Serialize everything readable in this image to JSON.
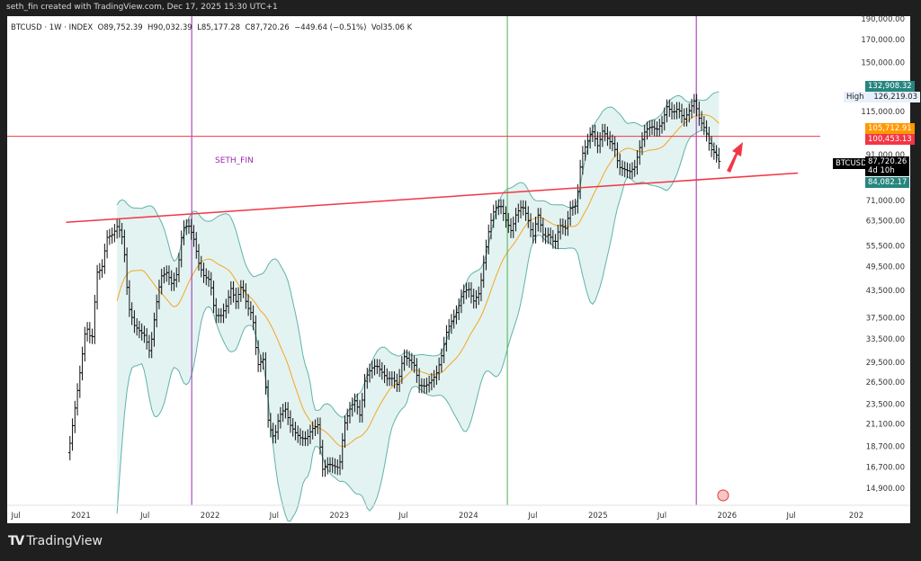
{
  "header": {
    "attribution": "seth_fin created with TradingView.com, Dec 17, 2025 15:30 UTC+1"
  },
  "legend": {
    "symbol": "BTCUSD · 1W · INDEX",
    "open": "O89,752.39",
    "high": "H90,032.39",
    "low": "L85,177.28",
    "close": "C87,720.26",
    "change": "−449.64 (−0.51%)",
    "volume": "Vol35.06 K"
  },
  "annotation": {
    "text": "SETH_FIN",
    "color": "#9c27b0"
  },
  "price_axis": {
    "scale": "log",
    "ticks": [
      "190,000.00",
      "170,000.00",
      "150,000.00",
      "115,000.00",
      "91,000.00",
      "71,000.00",
      "63,500.00",
      "55,500.00",
      "49,500.00",
      "43,500.00",
      "37,500.00",
      "33,500.00",
      "29,500.00",
      "26,500.00",
      "23,500.00",
      "21,100.00",
      "18,700.00",
      "16,700.00",
      "14,900.00"
    ],
    "labels": {
      "upper_band": {
        "text": "132,908.32",
        "color": "#26867f"
      },
      "high_label": "High",
      "high_value": "126,219.03",
      "ma": {
        "text": "105,712.91",
        "color": "#ff9800"
      },
      "hline": {
        "text": "100,453.13",
        "color": "#f23645"
      },
      "symbol": "BTCUSD",
      "last": "87,720.26",
      "countdown": "4d 10h",
      "lower_band": {
        "text": "84,082.17",
        "color": "#26867f"
      }
    }
  },
  "time_axis": {
    "ticks": [
      {
        "label": "Jul",
        "date": "2020-07-01"
      },
      {
        "label": "2021",
        "date": "2021-01-01"
      },
      {
        "label": "Jul",
        "date": "2021-07-01"
      },
      {
        "label": "2022",
        "date": "2022-01-01"
      },
      {
        "label": "Jul",
        "date": "2022-07-01"
      },
      {
        "label": "2023",
        "date": "2023-01-01"
      },
      {
        "label": "Jul",
        "date": "2023-07-01"
      },
      {
        "label": "2024",
        "date": "2024-01-01"
      },
      {
        "label": "Jul",
        "date": "2024-07-01"
      },
      {
        "label": "2025",
        "date": "2025-01-01"
      },
      {
        "label": "Jul",
        "date": "2025-07-01"
      },
      {
        "label": "2026",
        "date": "2026-01-01"
      },
      {
        "label": "Jul",
        "date": "2026-07-01"
      },
      {
        "label": "202",
        "date": "2027-01-01"
      }
    ]
  },
  "drawings": {
    "horizontal_line": {
      "price": 100453.13,
      "color": "#f23645"
    },
    "trend_line": {
      "from": [
        "2020-11-20",
        63000
      ],
      "to": [
        "2026-07-20",
        82300
      ],
      "color": "#f23645"
    },
    "vertical_lines": [
      {
        "date": "2021-11-10",
        "color": "#9c27b0"
      },
      {
        "date": "2024-04-20",
        "color": "#4caf50"
      },
      {
        "date": "2025-10-06",
        "color": "#9c27b0"
      }
    ],
    "arrow": {
      "color": "#f23645",
      "direction": "up-right"
    }
  },
  "indicators": {
    "bollinger": {
      "fill": "#e3f3f2",
      "stroke": "#5fb3aa"
    },
    "ma_color": "#f5a623"
  },
  "chart_data": {
    "type": "ohlc",
    "interval": "1W",
    "approx_close_path": [
      [
        "2020-12-01",
        19000
      ],
      [
        "2020-12-15",
        23000
      ],
      [
        "2021-01-01",
        29000
      ],
      [
        "2021-01-15",
        36000
      ],
      [
        "2021-02-01",
        33000
      ],
      [
        "2021-02-15",
        48000
      ],
      [
        "2021-03-01",
        49000
      ],
      [
        "2021-03-15",
        58000
      ],
      [
        "2021-04-01",
        59000
      ],
      [
        "2021-04-15",
        62000
      ],
      [
        "2021-05-01",
        57000
      ],
      [
        "2021-05-15",
        40000
      ],
      [
        "2021-06-01",
        36000
      ],
      [
        "2021-06-15",
        35000
      ],
      [
        "2021-07-01",
        34000
      ],
      [
        "2021-07-15",
        31000
      ],
      [
        "2021-08-01",
        40000
      ],
      [
        "2021-08-15",
        47000
      ],
      [
        "2021-09-01",
        48000
      ],
      [
        "2021-09-15",
        45000
      ],
      [
        "2021-10-01",
        48000
      ],
      [
        "2021-10-15",
        61000
      ],
      [
        "2021-11-01",
        62000
      ],
      [
        "2021-11-15",
        58000
      ],
      [
        "2021-12-01",
        50000
      ],
      [
        "2021-12-15",
        47000
      ],
      [
        "2022-01-01",
        46000
      ],
      [
        "2022-01-15",
        38000
      ],
      [
        "2022-02-01",
        38000
      ],
      [
        "2022-02-15",
        40000
      ],
      [
        "2022-03-01",
        44000
      ],
      [
        "2022-03-15",
        41000
      ],
      [
        "2022-04-01",
        45000
      ],
      [
        "2022-04-15",
        40000
      ],
      [
        "2022-05-01",
        38000
      ],
      [
        "2022-05-15",
        29000
      ],
      [
        "2022-06-01",
        30000
      ],
      [
        "2022-06-15",
        21000
      ],
      [
        "2022-07-01",
        19500
      ],
      [
        "2022-07-15",
        22000
      ],
      [
        "2022-08-01",
        23000
      ],
      [
        "2022-08-15",
        21000
      ],
      [
        "2022-09-01",
        20000
      ],
      [
        "2022-09-15",
        19500
      ],
      [
        "2022-10-01",
        19500
      ],
      [
        "2022-10-15",
        20500
      ],
      [
        "2022-11-01",
        21000
      ],
      [
        "2022-11-15",
        16500
      ],
      [
        "2022-12-01",
        17000
      ],
      [
        "2022-12-15",
        16800
      ],
      [
        "2023-01-01",
        16600
      ],
      [
        "2023-01-15",
        21000
      ],
      [
        "2023-02-01",
        23000
      ],
      [
        "2023-02-15",
        24000
      ],
      [
        "2023-03-01",
        22000
      ],
      [
        "2023-03-15",
        27000
      ],
      [
        "2023-04-01",
        28500
      ],
      [
        "2023-04-15",
        29000
      ],
      [
        "2023-05-01",
        28000
      ],
      [
        "2023-05-15",
        27000
      ],
      [
        "2023-06-01",
        27000
      ],
      [
        "2023-06-15",
        26000
      ],
      [
        "2023-07-01",
        30500
      ],
      [
        "2023-07-15",
        30000
      ],
      [
        "2023-08-01",
        29000
      ],
      [
        "2023-08-15",
        26000
      ],
      [
        "2023-09-01",
        25900
      ],
      [
        "2023-09-15",
        26500
      ],
      [
        "2023-10-01",
        27500
      ],
      [
        "2023-10-15",
        30000
      ],
      [
        "2023-11-01",
        35000
      ],
      [
        "2023-11-15",
        37000
      ],
      [
        "2023-12-01",
        39000
      ],
      [
        "2023-12-15",
        43000
      ],
      [
        "2024-01-01",
        44000
      ],
      [
        "2024-01-15",
        41000
      ],
      [
        "2024-02-01",
        43000
      ],
      [
        "2024-02-15",
        52000
      ],
      [
        "2024-03-01",
        62000
      ],
      [
        "2024-03-15",
        68000
      ],
      [
        "2024-04-01",
        69000
      ],
      [
        "2024-04-15",
        64000
      ],
      [
        "2024-05-01",
        60000
      ],
      [
        "2024-05-15",
        66000
      ],
      [
        "2024-06-01",
        69000
      ],
      [
        "2024-06-15",
        65000
      ],
      [
        "2024-07-01",
        58000
      ],
      [
        "2024-07-15",
        66000
      ],
      [
        "2024-08-01",
        58000
      ],
      [
        "2024-08-15",
        59000
      ],
      [
        "2024-09-01",
        56000
      ],
      [
        "2024-09-15",
        62000
      ],
      [
        "2024-10-01",
        61000
      ],
      [
        "2024-10-15",
        68000
      ],
      [
        "2024-11-01",
        69000
      ],
      [
        "2024-11-15",
        90000
      ],
      [
        "2024-12-01",
        97000
      ],
      [
        "2024-12-15",
        104000
      ],
      [
        "2025-01-01",
        95000
      ],
      [
        "2025-01-15",
        104000
      ],
      [
        "2025-02-01",
        98000
      ],
      [
        "2025-02-15",
        96000
      ],
      [
        "2025-03-01",
        85000
      ],
      [
        "2025-03-15",
        84000
      ],
      [
        "2025-04-01",
        83000
      ],
      [
        "2025-04-15",
        85000
      ],
      [
        "2025-05-01",
        96000
      ],
      [
        "2025-05-15",
        104000
      ],
      [
        "2025-06-01",
        106000
      ],
      [
        "2025-06-15",
        104000
      ],
      [
        "2025-07-01",
        108000
      ],
      [
        "2025-07-15",
        118000
      ],
      [
        "2025-08-01",
        114000
      ],
      [
        "2025-08-15",
        117000
      ],
      [
        "2025-09-01",
        110000
      ],
      [
        "2025-09-15",
        115000
      ],
      [
        "2025-10-01",
        122000
      ],
      [
        "2025-10-15",
        110000
      ],
      [
        "2025-11-01",
        104000
      ],
      [
        "2025-11-15",
        94000
      ],
      [
        "2025-12-01",
        91000
      ],
      [
        "2025-12-15",
        87720.26
      ]
    ]
  },
  "footer": {
    "brand": "TradingView"
  }
}
